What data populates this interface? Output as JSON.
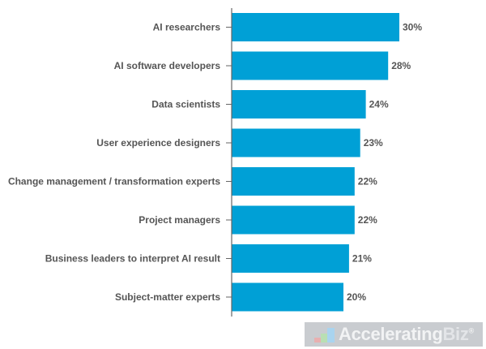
{
  "chart_data": {
    "type": "bar",
    "orientation": "horizontal",
    "categories": [
      "AI researchers",
      "AI software developers",
      "Data scientists",
      "User experience designers",
      "Change management / transformation experts",
      "Project managers",
      "Business leaders to interpret AI result",
      "Subject-matter experts"
    ],
    "values": [
      30,
      28,
      24,
      23,
      22,
      22,
      21,
      20
    ],
    "value_labels": [
      "30%",
      "28%",
      "24%",
      "23%",
      "22%",
      "22%",
      "21%",
      "20%"
    ],
    "title": "",
    "xlabel": "",
    "ylabel": "",
    "xlim": [
      0,
      43
    ],
    "grid": false,
    "bar_color": "#00a0d6"
  },
  "watermark": {
    "text_main": "Accelerating",
    "text_accent": "Biz",
    "mark": "®"
  }
}
